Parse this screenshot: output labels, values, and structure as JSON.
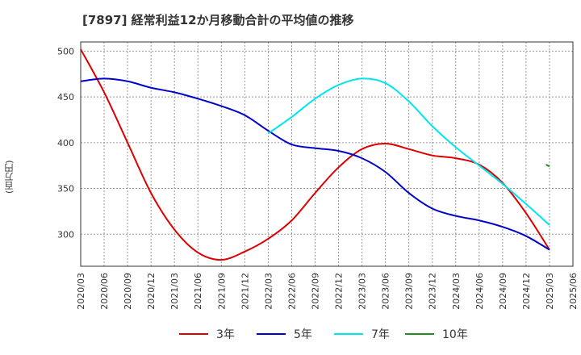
{
  "title": "[7897]  経常利益12か月移動合計の平均値の推移",
  "ylabel": "(百万円)",
  "chart_data": {
    "type": "line",
    "title": "[7897]  経常利益12か月移動合計の平均値の推移",
    "xlabel": "",
    "ylabel": "(百万円)",
    "ylim": [
      265,
      510
    ],
    "yticks": [
      300,
      350,
      400,
      450,
      500
    ],
    "x": [
      "2020/03",
      "2020/06",
      "2020/09",
      "2020/12",
      "2021/03",
      "2021/06",
      "2021/09",
      "2021/12",
      "2022/03",
      "2022/06",
      "2022/09",
      "2022/12",
      "2023/03",
      "2023/06",
      "2023/09",
      "2023/12",
      "2024/03",
      "2024/06",
      "2024/09",
      "2024/12",
      "2025/03",
      "2025/06"
    ],
    "grid": true,
    "legend_position": "bottom",
    "series": [
      {
        "name": "3年",
        "color": "#dd0000",
        "values": [
          502,
          455,
          400,
          345,
          305,
          280,
          272,
          281,
          295,
          315,
          345,
          373,
          393,
          399,
          393,
          386,
          383,
          376,
          356,
          323,
          283,
          null
        ]
      },
      {
        "name": "5年",
        "color": "#0000cc",
        "values": [
          467,
          470,
          467,
          460,
          455,
          448,
          440,
          430,
          413,
          398,
          394,
          391,
          383,
          368,
          345,
          328,
          320,
          315,
          308,
          298,
          283,
          null
        ]
      },
      {
        "name": "7年",
        "color": "#00e5ee",
        "values": [
          null,
          null,
          null,
          null,
          null,
          null,
          null,
          null,
          410,
          428,
          448,
          463,
          470,
          465,
          445,
          418,
          395,
          375,
          355,
          333,
          310,
          null
        ]
      },
      {
        "name": "10年",
        "color": "#228b22",
        "values": [
          null,
          null,
          null,
          null,
          null,
          null,
          null,
          null,
          null,
          null,
          null,
          null,
          null,
          null,
          null,
          null,
          null,
          null,
          null,
          null,
          376,
          null
        ],
        "segment": [
          [
            19.85,
            376
          ],
          [
            20.0,
            374
          ]
        ]
      }
    ]
  }
}
